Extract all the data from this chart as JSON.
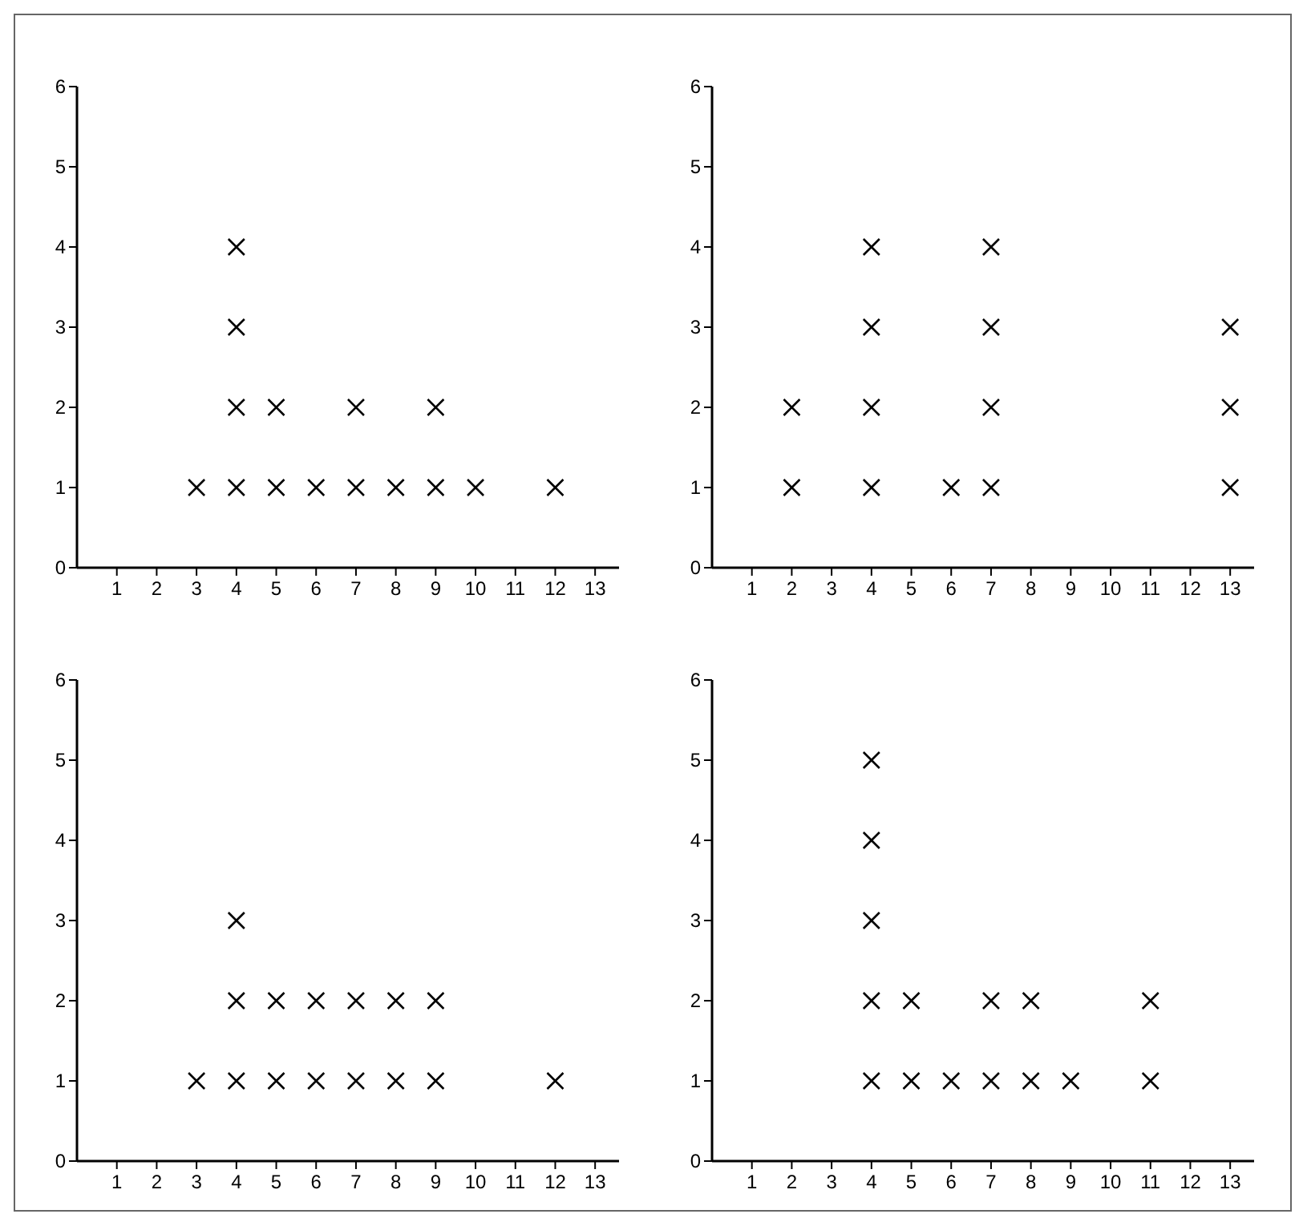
{
  "chart_data": [
    {
      "type": "scatter",
      "marker": "cross",
      "xlim": [
        0,
        13.6
      ],
      "ylim": [
        0,
        6
      ],
      "xticks": [
        1,
        2,
        3,
        4,
        5,
        6,
        7,
        8,
        9,
        10,
        11,
        12,
        13
      ],
      "yticks": [
        0,
        1,
        2,
        3,
        4,
        5,
        6
      ],
      "series": [
        {
          "color": "#000000",
          "x": [
            3,
            4,
            4,
            4,
            4,
            5,
            5,
            6,
            7,
            7,
            8,
            9,
            9,
            10,
            12
          ],
          "values": [
            1,
            1,
            2,
            3,
            4,
            1,
            2,
            1,
            1,
            2,
            1,
            1,
            2,
            1,
            1
          ]
        }
      ]
    },
    {
      "type": "scatter",
      "marker": "cross",
      "xlim": [
        0,
        13.6
      ],
      "ylim": [
        0,
        6
      ],
      "xticks": [
        1,
        2,
        3,
        4,
        5,
        6,
        7,
        8,
        9,
        10,
        11,
        12,
        13
      ],
      "yticks": [
        0,
        1,
        2,
        3,
        4,
        5,
        6
      ],
      "series": [
        {
          "color": "#000000",
          "x": [
            2,
            2,
            4,
            4,
            4,
            4,
            6,
            7,
            7,
            7,
            7,
            13,
            13,
            13
          ],
          "values": [
            1,
            2,
            1,
            2,
            3,
            4,
            1,
            1,
            2,
            3,
            4,
            1,
            2,
            3
          ]
        }
      ]
    },
    {
      "type": "scatter",
      "marker": "cross",
      "xlim": [
        0,
        13.6
      ],
      "ylim": [
        0,
        6
      ],
      "xticks": [
        1,
        2,
        3,
        4,
        5,
        6,
        7,
        8,
        9,
        10,
        11,
        12,
        13
      ],
      "yticks": [
        0,
        1,
        2,
        3,
        4,
        5,
        6
      ],
      "series": [
        {
          "color": "#000000",
          "x": [
            3,
            4,
            4,
            4,
            5,
            5,
            6,
            6,
            7,
            7,
            8,
            8,
            9,
            9,
            12
          ],
          "values": [
            1,
            1,
            2,
            3,
            1,
            2,
            1,
            2,
            1,
            2,
            1,
            2,
            1,
            2,
            1
          ]
        }
      ]
    },
    {
      "type": "scatter",
      "marker": "cross",
      "xlim": [
        0,
        13.6
      ],
      "ylim": [
        0,
        6
      ],
      "xticks": [
        1,
        2,
        3,
        4,
        5,
        6,
        7,
        8,
        9,
        10,
        11,
        12,
        13
      ],
      "yticks": [
        0,
        1,
        2,
        3,
        4,
        5,
        6
      ],
      "series": [
        {
          "color": "#000000",
          "x": [
            4,
            4,
            4,
            4,
            4,
            5,
            5,
            6,
            7,
            7,
            8,
            8,
            9,
            11,
            11
          ],
          "values": [
            1,
            2,
            3,
            4,
            5,
            1,
            2,
            1,
            1,
            2,
            1,
            2,
            1,
            1,
            2
          ]
        }
      ]
    }
  ]
}
